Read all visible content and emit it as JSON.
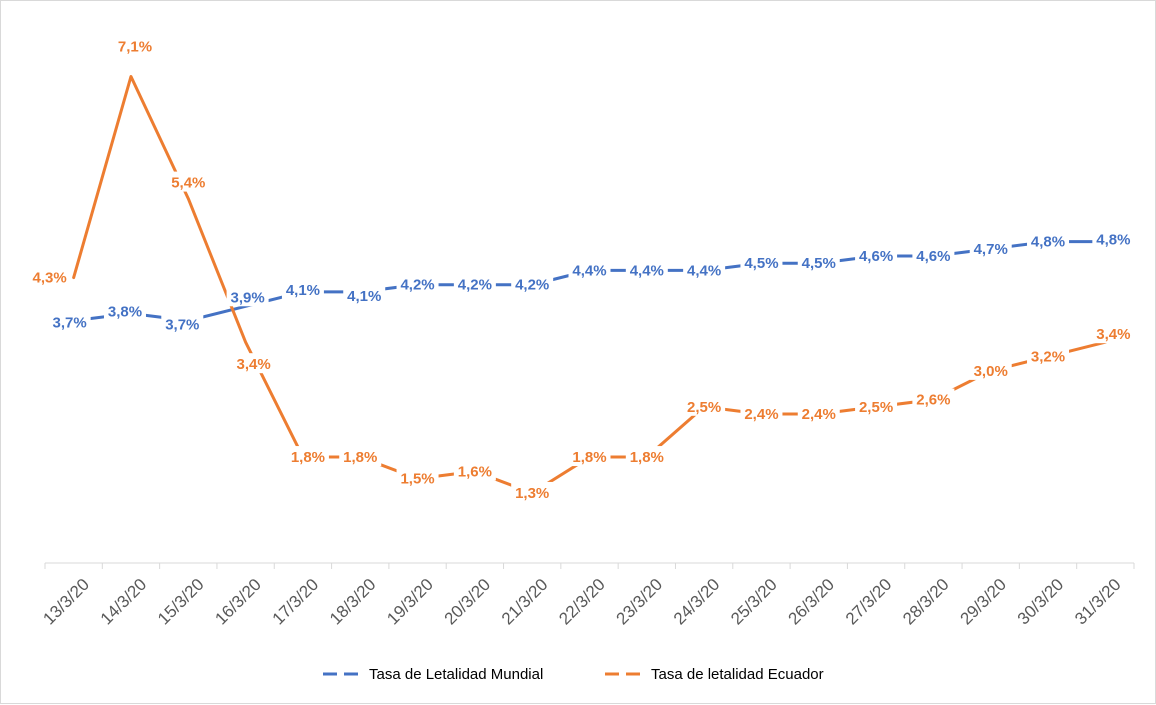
{
  "chart_data": {
    "type": "line",
    "categories": [
      "13/3/20",
      "14/3/20",
      "15/3/20",
      "16/3/20",
      "17/3/20",
      "18/3/20",
      "19/3/20",
      "20/3/20",
      "21/3/20",
      "22/3/20",
      "23/3/20",
      "24/3/20",
      "25/3/20",
      "26/3/20",
      "27/3/20",
      "28/3/20",
      "29/3/20",
      "30/3/20",
      "31/3/20"
    ],
    "series": [
      {
        "name": "Tasa de Letalidad Mundial",
        "color": "#4472c4",
        "values": [
          3.7,
          3.8,
          3.7,
          3.9,
          4.1,
          4.1,
          4.2,
          4.2,
          4.2,
          4.4,
          4.4,
          4.4,
          4.5,
          4.5,
          4.6,
          4.6,
          4.7,
          4.8,
          4.8
        ],
        "labels": [
          "3,7%",
          "3,8%",
          "3,7%",
          "3,9%",
          "4,1%",
          "4,1%",
          "4,2%",
          "4,2%",
          "4,2%",
          "4,4%",
          "4,4%",
          "4,4%",
          "4,5%",
          "4,5%",
          "4,6%",
          "4,6%",
          "4,7%",
          "4,8%",
          "4,8%"
        ]
      },
      {
        "name": "Tasa de letalidad Ecuador",
        "color": "#ed7d31",
        "values": [
          4.3,
          7.1,
          5.4,
          3.4,
          1.8,
          1.8,
          1.5,
          1.6,
          1.3,
          1.8,
          1.8,
          2.5,
          2.4,
          2.4,
          2.5,
          2.6,
          3.0,
          3.2,
          3.4
        ],
        "labels": [
          "4,3%",
          "7,1%",
          "5,4%",
          "3,4%",
          "1,8%",
          "1,8%",
          "1,5%",
          "1,6%",
          "1,3%",
          "1,8%",
          "1,8%",
          "2,5%",
          "2,4%",
          "2,4%",
          "2,5%",
          "2,6%",
          "3,0%",
          "3,2%",
          "3,4%"
        ]
      }
    ],
    "title": "",
    "xlabel": "",
    "ylabel": "",
    "ylim": [
      0,
      8
    ],
    "grid": false,
    "legend_position": "bottom"
  }
}
